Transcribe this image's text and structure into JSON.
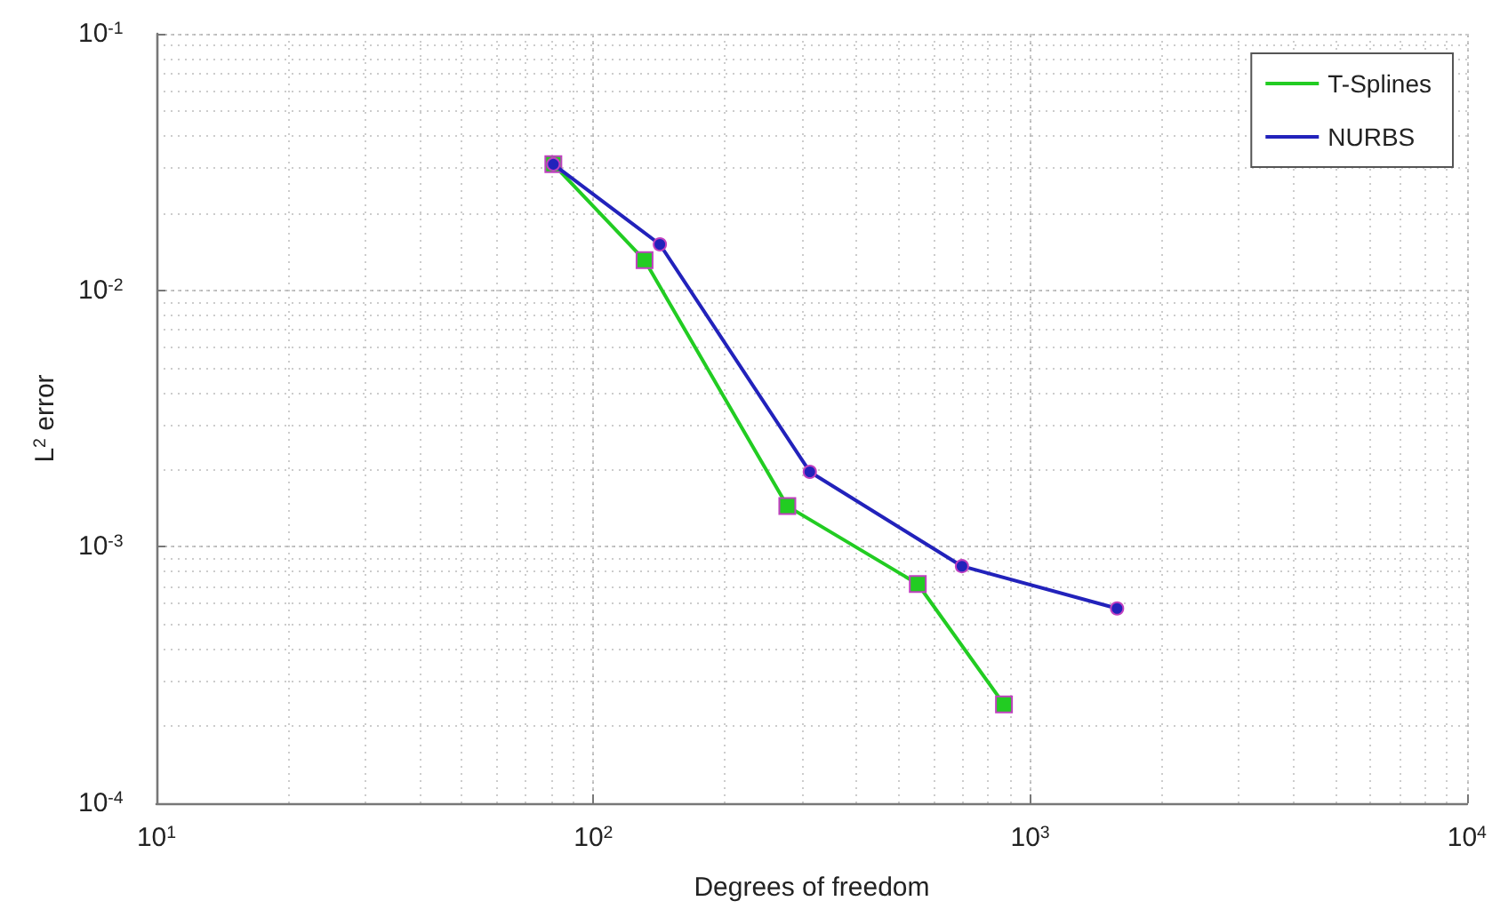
{
  "chart_data": {
    "type": "line",
    "xlabel": "Degrees of freedom",
    "ylabel": "L$^{2}$ error",
    "log": "xy",
    "grid": true,
    "legend": "top right",
    "line_style": "solid",
    "xlim": [
      10,
      10000
    ],
    "ylim": [
      0.0001,
      0.1
    ],
    "xticks": [
      {
        "value": 10,
        "label": "10$^{1}$"
      },
      {
        "value": 100,
        "label": "10$^{2}$"
      },
      {
        "value": 1000,
        "label": "10$^{3}$"
      },
      {
        "value": 10000,
        "label": "10$^{4}$"
      }
    ],
    "yticks": [
      {
        "value": 0.0001,
        "label": "10$^{-4}$"
      },
      {
        "value": 0.001,
        "label": "10$^{-3}$"
      },
      {
        "value": 0.01,
        "label": "10$^{-2}$"
      },
      {
        "value": 0.1,
        "label": "10$^{-1}$"
      }
    ],
    "series": [
      {
        "name": "T-Splines",
        "color": "#22cc22",
        "marker": "square",
        "x": [
          81,
          131,
          278,
          553,
          871
        ],
        "values": [
          0.031,
          0.0131,
          0.00144,
          0.000716,
          0.000243
        ]
      },
      {
        "name": "NURBS",
        "color": "#2222bb",
        "marker": "circle",
        "x": [
          81,
          142,
          313,
          698,
          1581
        ],
        "values": [
          0.031,
          0.0151,
          0.00196,
          0.00084,
          0.000575
        ]
      }
    ]
  }
}
